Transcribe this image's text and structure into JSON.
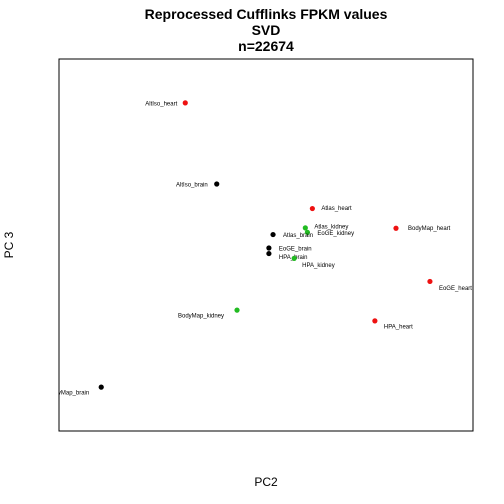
{
  "chart_data": {
    "type": "scatter",
    "title": [
      "Reprocessed Cufflinks FPKM values",
      "SVD",
      "n=22674"
    ],
    "xlabel": "PC2",
    "ylabel": "PC 3",
    "xlim": [
      0,
      100
    ],
    "ylim": [
      0,
      100
    ],
    "grid": false,
    "legend": "none",
    "colors": {
      "red": "#ee1111",
      "black": "#000000",
      "green": "#22bb22"
    },
    "points": [
      {
        "label": "AltIso_heart",
        "x": 30.5,
        "y": 88.2,
        "color": "red"
      },
      {
        "label": "AltIso_brain",
        "x": 38.1,
        "y": 66.4,
        "color": "black"
      },
      {
        "label": "Atlas_heart",
        "x": 61.2,
        "y": 59.8,
        "color": "red"
      },
      {
        "label": "Atlas_kidney",
        "x": 59.5,
        "y": 54.6,
        "color": "green"
      },
      {
        "label": "EoGE_kidney",
        "x": 60.0,
        "y": 53.4,
        "color": "green"
      },
      {
        "label": "Atlas_brain",
        "x": 51.7,
        "y": 52.8,
        "color": "black"
      },
      {
        "label": "BodyMap_heart",
        "x": 81.4,
        "y": 54.5,
        "color": "red"
      },
      {
        "label": "EoGE_brain",
        "x": 50.7,
        "y": 49.2,
        "color": "black"
      },
      {
        "label": "HPA_brain",
        "x": 50.7,
        "y": 47.7,
        "color": "black"
      },
      {
        "label": "HPA_kidney",
        "x": 56.8,
        "y": 46.4,
        "color": "green"
      },
      {
        "label": "EoGE_heart",
        "x": 89.6,
        "y": 40.2,
        "color": "red"
      },
      {
        "label": "BodyMap_kidney",
        "x": 43.0,
        "y": 32.5,
        "color": "green"
      },
      {
        "label": "HPA_heart",
        "x": 76.3,
        "y": 29.6,
        "color": "red"
      },
      {
        "label": "BodyMap_brain",
        "x": 10.2,
        "y": 11.8,
        "color": "black"
      }
    ]
  }
}
